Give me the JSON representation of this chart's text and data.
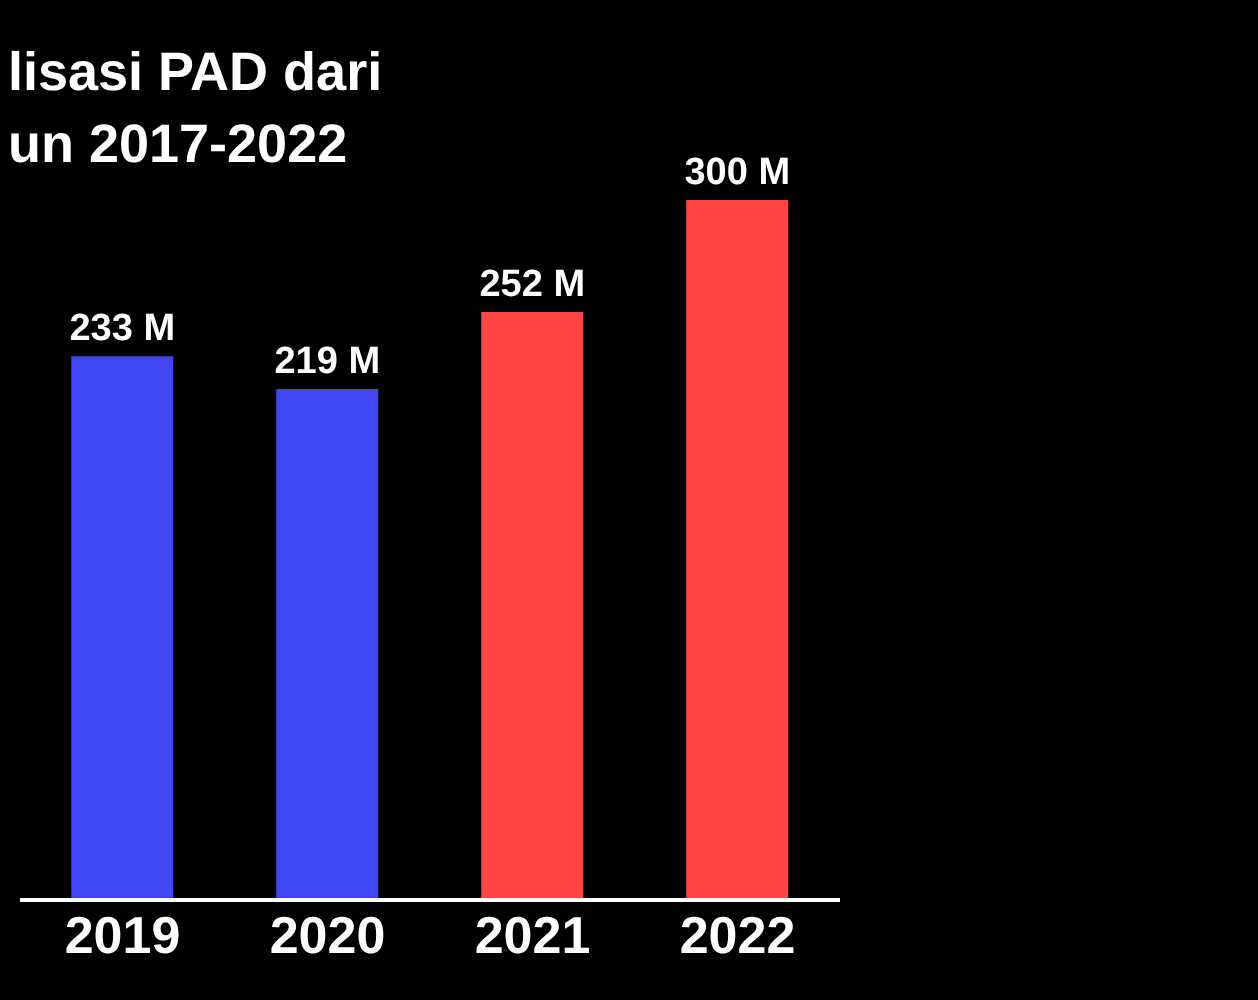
{
  "chart_data": {
    "type": "bar",
    "title": "lisasi PAD dari\nun 2017-2022",
    "categories": [
      "2019",
      "2020",
      "2021",
      "2022"
    ],
    "values": [
      233,
      219,
      252,
      300
    ],
    "value_labels": [
      "233 M",
      "219 M",
      "252 M",
      "300 M"
    ],
    "colors": [
      "#4047f2",
      "#4047f2",
      "#ff4545",
      "#ff4545"
    ],
    "grid": false,
    "legend": false
  }
}
